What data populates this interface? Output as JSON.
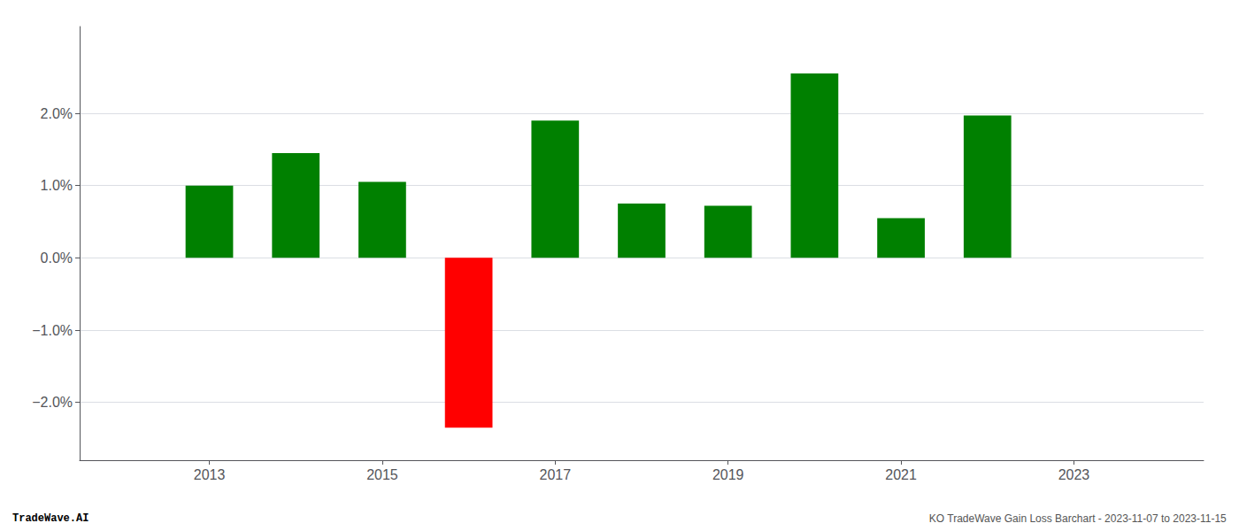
{
  "chart_data": {
    "type": "bar",
    "x": [
      2013,
      2014,
      2015,
      2016,
      2017,
      2018,
      2019,
      2020,
      2021,
      2022
    ],
    "values": [
      0.01,
      0.0145,
      0.0105,
      -0.0235,
      0.019,
      0.0075,
      0.0072,
      0.0255,
      0.0055,
      0.0197
    ],
    "colors": [
      "#008000",
      "#008000",
      "#008000",
      "#ff0000",
      "#008000",
      "#008000",
      "#008000",
      "#008000",
      "#008000",
      "#008000"
    ],
    "xlim": [
      2011.5,
      2024.5
    ],
    "xticks": [
      2013,
      2015,
      2017,
      2019,
      2021,
      2023
    ],
    "ylim": [
      -0.028,
      0.032
    ],
    "yticks": [
      {
        "value": -0.02,
        "label": "−2.0%"
      },
      {
        "value": -0.01,
        "label": "−1.0%"
      },
      {
        "value": 0.0,
        "label": "0.0%"
      },
      {
        "value": 0.01,
        "label": "1.0%"
      },
      {
        "value": 0.02,
        "label": "2.0%"
      }
    ],
    "grid": true,
    "annotations": [
      "TradeWave.AI",
      "KO TradeWave Gain Loss Barchart - 2023-11-07 to 2023-11-15"
    ]
  }
}
